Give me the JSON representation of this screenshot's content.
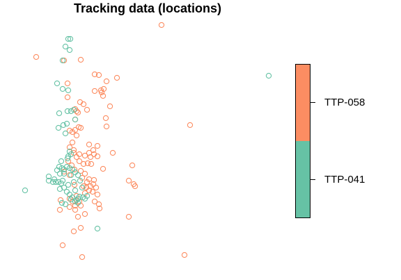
{
  "chart_data": {
    "type": "scatter",
    "title": "Tracking data (locations)",
    "xlabel": "",
    "ylabel": "",
    "grid": false,
    "axes_shown": false,
    "legend_position": "right",
    "series": [
      {
        "name": "TTP-058",
        "color": "#FC8D62",
        "marker": "open-circle",
        "points": [
          [
            232,
            36
          ],
          [
            52,
            82
          ],
          [
            116,
            86
          ],
          [
            92,
            87
          ],
          [
            136,
            107
          ],
          [
            142,
            108
          ],
          [
            168,
            112
          ],
          [
            153,
            117
          ],
          [
            97,
            120
          ],
          [
            149,
            128
          ],
          [
            145,
            130
          ],
          [
            136,
            131
          ],
          [
            146,
            133
          ],
          [
            148,
            138
          ],
          [
            97,
            140
          ],
          [
            115,
            147
          ],
          [
            120,
            150
          ],
          [
            158,
            153
          ],
          [
            108,
            157
          ],
          [
            125,
            158
          ],
          [
            110,
            160
          ],
          [
            112,
            162
          ],
          [
            152,
            170
          ],
          [
            108,
            172
          ],
          [
            273,
            180
          ],
          [
            113,
            183
          ],
          [
            116,
            184
          ],
          [
            153,
            182
          ],
          [
            100,
            188
          ],
          [
            104,
            190
          ],
          [
            108,
            187
          ],
          [
            110,
            195
          ],
          [
            128,
            208
          ],
          [
            100,
            212
          ],
          [
            104,
            205
          ],
          [
            140,
            210
          ],
          [
            106,
            216
          ],
          [
            134,
            216
          ],
          [
            106,
            220
          ],
          [
            114,
            222
          ],
          [
            122,
            224
          ],
          [
            128,
            220
          ],
          [
            130,
            226
          ],
          [
            135,
            222
          ],
          [
            140,
            225
          ],
          [
            110,
            226
          ],
          [
            114,
            232
          ],
          [
            120,
            236
          ],
          [
            126,
            235
          ],
          [
            131,
            236
          ],
          [
            162,
            220
          ],
          [
            98,
            232
          ],
          [
            103,
            238
          ],
          [
            107,
            244
          ],
          [
            148,
            243
          ],
          [
            190,
            238
          ],
          [
            116,
            246
          ],
          [
            122,
            250
          ],
          [
            100,
            252
          ],
          [
            92,
            247
          ],
          [
            118,
            256
          ],
          [
            128,
            258
          ],
          [
            135,
            259
          ],
          [
            125,
            262
          ],
          [
            107,
            266
          ],
          [
            120,
            268
          ],
          [
            124,
            270
          ],
          [
            130,
            268
          ],
          [
            134,
            265
          ],
          [
            138,
            270
          ],
          [
            128,
            274
          ],
          [
            133,
            276
          ],
          [
            122,
            278
          ],
          [
            140,
            280
          ],
          [
            185,
            260
          ],
          [
            192,
            265
          ],
          [
            194,
            268
          ],
          [
            110,
            282
          ],
          [
            100,
            286
          ],
          [
            87,
            288
          ],
          [
            104,
            290
          ],
          [
            116,
            296
          ],
          [
            136,
            290
          ],
          [
            142,
            294
          ],
          [
            108,
            302
          ],
          [
            86,
            302
          ],
          [
            122,
            308
          ],
          [
            112,
            312
          ],
          [
            143,
            300
          ],
          [
            185,
            312
          ],
          [
            116,
            328
          ],
          [
            106,
            333
          ],
          [
            90,
            353
          ],
          [
            118,
            370
          ],
          [
            265,
            367
          ],
          [
            108,
            296
          ],
          [
            114,
            290
          ],
          [
            100,
            298
          ]
        ]
      },
      {
        "name": "TTP-041",
        "color": "#66C2A5",
        "marker": "open-circle",
        "points": [
          [
            98,
            56
          ],
          [
            101,
            56
          ],
          [
            94,
            67
          ],
          [
            100,
            72
          ],
          [
            90,
            87
          ],
          [
            82,
            120
          ],
          [
            90,
            128
          ],
          [
            98,
            130
          ],
          [
            85,
            163
          ],
          [
            97,
            160
          ],
          [
            102,
            160
          ],
          [
            106,
            158
          ],
          [
            108,
            172
          ],
          [
            91,
            180
          ],
          [
            96,
            178
          ],
          [
            84,
            184
          ],
          [
            94,
            192
          ],
          [
            100,
            218
          ],
          [
            102,
            222
          ],
          [
            98,
            225
          ],
          [
            97,
            228
          ],
          [
            88,
            232
          ],
          [
            85,
            240
          ],
          [
            89,
            242
          ],
          [
            92,
            244
          ],
          [
            96,
            240
          ],
          [
            100,
            242
          ],
          [
            104,
            244
          ],
          [
            108,
            248
          ],
          [
            92,
            250
          ],
          [
            82,
            245
          ],
          [
            86,
            250
          ],
          [
            70,
            254
          ],
          [
            102,
            252
          ],
          [
            112,
            252
          ],
          [
            115,
            260
          ],
          [
            106,
            262
          ],
          [
            80,
            262
          ],
          [
            84,
            262
          ],
          [
            88,
            264
          ],
          [
            90,
            260
          ],
          [
            78,
            258
          ],
          [
            76,
            262
          ],
          [
            70,
            260
          ],
          [
            98,
            266
          ],
          [
            118,
            270
          ],
          [
            36,
            274
          ],
          [
            92,
            270
          ],
          [
            86,
            272
          ],
          [
            108,
            274
          ],
          [
            96,
            276
          ],
          [
            100,
            280
          ],
          [
            104,
            284
          ],
          [
            102,
            287
          ],
          [
            108,
            290
          ],
          [
            112,
            286
          ],
          [
            119,
            284
          ],
          [
            114,
            283
          ],
          [
            125,
            282
          ],
          [
            112,
            292
          ],
          [
            89,
            292
          ],
          [
            94,
            294
          ],
          [
            140,
            329
          ],
          [
            386,
            109
          ],
          [
            110,
            288
          ],
          [
            122,
            286
          ]
        ]
      }
    ],
    "legend": {
      "entries": [
        "TTP-058",
        "TTP-041"
      ]
    }
  }
}
